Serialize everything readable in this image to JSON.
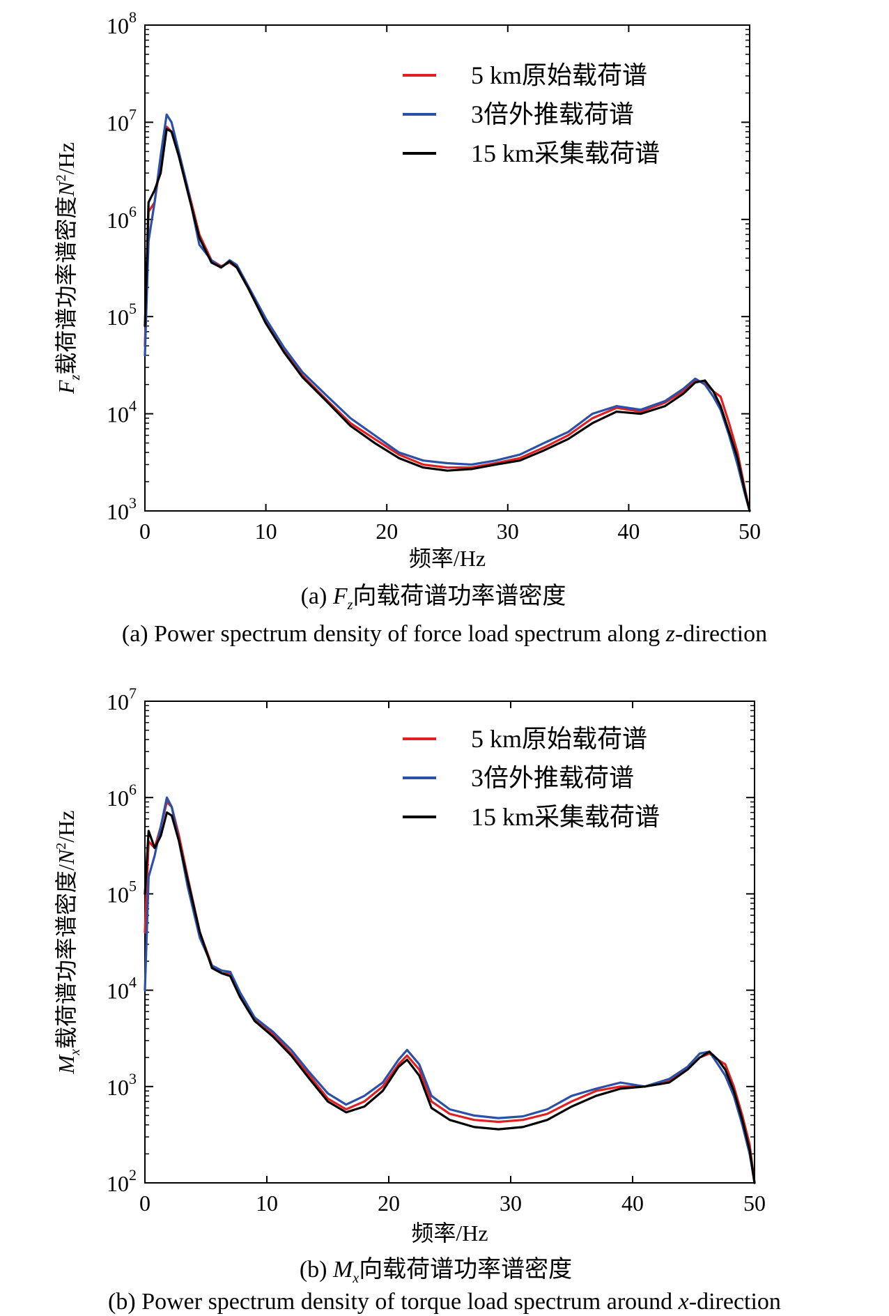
{
  "chart_data": [
    {
      "id": "a",
      "type": "line",
      "xlabel": "频率/Hz",
      "ylabel_main": "F",
      "ylabel_sub": "z",
      "ylabel_rest": "载荷谱功率谱密度",
      "ylabel_unit_n": "N",
      "ylabel_unit_exp": "2",
      "ylabel_unit_tail": "/Hz",
      "xlim": [
        0,
        50
      ],
      "ylim_exp": [
        3,
        8
      ],
      "yscale": "log",
      "xticks": [
        "0",
        "10",
        "20",
        "30",
        "40",
        "50"
      ],
      "yticks": [
        {
          "base": "10",
          "exp": "3"
        },
        {
          "base": "10",
          "exp": "4"
        },
        {
          "base": "10",
          "exp": "5"
        },
        {
          "base": "10",
          "exp": "6"
        },
        {
          "base": "10",
          "exp": "7"
        },
        {
          "base": "10",
          "exp": "8"
        }
      ],
      "legend_position": "top-right",
      "caption_cn_prefix": "(a) ",
      "caption_cn_var": "F",
      "caption_cn_sub": "z",
      "caption_cn_rest": "向载荷谱功率谱密度",
      "caption_en_a": "(a) Power spectrum density of  force load spectrum along ",
      "caption_en_var": "z",
      "caption_en_b": "-direction",
      "series": [
        {
          "name": "5 km原始载荷谱",
          "color": "#e02020",
          "x": [
            0,
            0.3,
            0.8,
            1.3,
            1.8,
            2.2,
            2.8,
            3.5,
            4.5,
            5.5,
            6.3,
            7.0,
            7.6,
            8.5,
            10,
            11.5,
            13,
            15,
            17,
            19,
            21,
            23,
            25,
            27,
            29,
            31,
            33,
            35,
            37,
            39,
            41,
            43,
            44.5,
            45.5,
            46.3,
            47,
            47.6,
            48.3,
            49,
            49.6,
            50
          ],
          "y": [
            50000,
            1200000,
            1500000,
            4000000,
            9000000,
            8000000,
            4500000,
            2200000,
            700000,
            380000,
            330000,
            360000,
            320000,
            200000,
            90000,
            45000,
            25000,
            14000,
            8000,
            5500,
            3800,
            3000,
            2800,
            2800,
            3100,
            3500,
            4500,
            6000,
            9000,
            11500,
            10500,
            13000,
            17000,
            22000,
            21000,
            17000,
            15000,
            8000,
            4000,
            1700,
            1000
          ]
        },
        {
          "name": "3倍外推载荷谱",
          "color": "#2a50a8",
          "x": [
            0,
            0.3,
            0.8,
            1.3,
            1.8,
            2.2,
            2.8,
            3.5,
            4.5,
            5.5,
            6.3,
            7.0,
            7.6,
            8.5,
            10,
            11.5,
            13,
            15,
            17,
            19,
            21,
            23,
            25,
            27,
            29,
            31,
            33,
            35,
            37,
            39,
            41,
            43,
            44.5,
            45.5,
            46.3,
            47,
            47.6,
            48.3,
            49,
            49.6,
            50
          ],
          "y": [
            40000,
            600000,
            1500000,
            4500000,
            12000000,
            10000000,
            5000000,
            2200000,
            550000,
            380000,
            320000,
            380000,
            340000,
            210000,
            95000,
            48000,
            27000,
            15500,
            9000,
            6000,
            4000,
            3300,
            3100,
            3000,
            3300,
            3800,
            5000,
            6500,
            10000,
            12000,
            11000,
            13500,
            18000,
            23000,
            20000,
            15000,
            11000,
            6000,
            3000,
            1500,
            1000
          ]
        },
        {
          "name": "15 km采集载荷谱",
          "color": "#000000",
          "x": [
            0,
            0.3,
            0.8,
            1.3,
            1.8,
            2.2,
            2.8,
            3.5,
            4.5,
            5.5,
            6.3,
            7.0,
            7.6,
            8.5,
            10,
            11.5,
            13,
            15,
            17,
            19,
            21,
            23,
            25,
            27,
            29,
            31,
            33,
            35,
            37,
            39,
            41,
            43,
            44.5,
            45.5,
            46.3,
            47,
            47.6,
            48.3,
            49,
            49.6,
            50
          ],
          "y": [
            80000,
            1500000,
            2000000,
            3000000,
            8500000,
            8000000,
            4500000,
            2000000,
            650000,
            360000,
            320000,
            370000,
            320000,
            200000,
            85000,
            43000,
            24000,
            13500,
            7500,
            5000,
            3500,
            2800,
            2600,
            2700,
            3000,
            3300,
            4200,
            5500,
            8000,
            10500,
            10000,
            12000,
            16000,
            21000,
            22000,
            17000,
            12000,
            6500,
            3500,
            1600,
            1000
          ]
        }
      ]
    },
    {
      "id": "b",
      "type": "line",
      "xlabel": "频率/Hz",
      "ylabel_main": "M",
      "ylabel_sub": "x",
      "ylabel_rest": "载荷谱功率谱密度/",
      "ylabel_unit_n": "N",
      "ylabel_unit_exp": "2",
      "ylabel_unit_tail": "/Hz",
      "xlim": [
        0,
        50
      ],
      "ylim_exp": [
        2,
        7
      ],
      "yscale": "log",
      "xticks": [
        "0",
        "10",
        "20",
        "30",
        "40",
        "50"
      ],
      "yticks": [
        {
          "base": "10",
          "exp": "2"
        },
        {
          "base": "10",
          "exp": "3"
        },
        {
          "base": "10",
          "exp": "4"
        },
        {
          "base": "10",
          "exp": "5"
        },
        {
          "base": "10",
          "exp": "6"
        },
        {
          "base": "10",
          "exp": "7"
        }
      ],
      "legend_position": "top-right",
      "caption_cn_prefix": "(b) ",
      "caption_cn_var": "M",
      "caption_cn_sub": "x",
      "caption_cn_rest": "向载荷谱功率谱密度",
      "caption_en_a": "(b) Power spectrum density of torque load spectrum around ",
      "caption_en_var": "x",
      "caption_en_b": "-direction",
      "series": [
        {
          "name": "5 km原始载荷谱",
          "color": "#e02020",
          "x": [
            0,
            0.3,
            0.8,
            1.3,
            1.8,
            2.2,
            2.8,
            3.5,
            4.5,
            5.5,
            6.3,
            7.0,
            7.8,
            9,
            10.5,
            12,
            13.5,
            15,
            16.5,
            18,
            19.5,
            20.8,
            21.5,
            22.5,
            23.5,
            25,
            27,
            29,
            31,
            33,
            35,
            37,
            39,
            41,
            43,
            44.5,
            45.5,
            46.3,
            47,
            47.6,
            48.3,
            49,
            49.6,
            50
          ],
          "y": [
            40000,
            350000,
            300000,
            500000,
            900000,
            800000,
            400000,
            150000,
            40000,
            18000,
            15000,
            15000,
            9000,
            5000,
            3500,
            2200,
            1300,
            750,
            580,
            700,
            1000,
            1700,
            2100,
            1500,
            700,
            520,
            450,
            430,
            450,
            520,
            700,
            900,
            1000,
            1000,
            1150,
            1500,
            2000,
            2200,
            1900,
            1700,
            1000,
            500,
            250,
            100
          ]
        },
        {
          "name": "3倍外推载荷谱",
          "color": "#2a50a8",
          "x": [
            0,
            0.3,
            0.8,
            1.3,
            1.8,
            2.2,
            2.8,
            3.5,
            4.5,
            5.5,
            6.3,
            7.0,
            7.8,
            9,
            10.5,
            12,
            13.5,
            15,
            16.5,
            18,
            19.5,
            20.8,
            21.5,
            22.5,
            23.5,
            25,
            27,
            29,
            31,
            33,
            35,
            37,
            39,
            41,
            43,
            44.5,
            45.5,
            46.3,
            47,
            47.6,
            48.3,
            49,
            49.6,
            50
          ],
          "y": [
            10000,
            150000,
            250000,
            500000,
            1000000,
            800000,
            350000,
            120000,
            35000,
            18000,
            16000,
            15500,
            9500,
            5200,
            3700,
            2400,
            1400,
            850,
            650,
            800,
            1100,
            1900,
            2400,
            1700,
            800,
            580,
            500,
            470,
            490,
            580,
            800,
            950,
            1100,
            1000,
            1200,
            1600,
            2200,
            2300,
            1700,
            1300,
            800,
            400,
            200,
            100
          ]
        },
        {
          "name": "15 km采集载荷谱",
          "color": "#000000",
          "x": [
            0,
            0.3,
            0.8,
            1.3,
            1.8,
            2.2,
            2.8,
            3.5,
            4.5,
            5.5,
            6.3,
            7.0,
            7.8,
            9,
            10.5,
            12,
            13.5,
            15,
            16.5,
            18,
            19.5,
            20.8,
            21.5,
            22.5,
            23.5,
            25,
            27,
            29,
            31,
            33,
            35,
            37,
            39,
            41,
            43,
            44.5,
            45.5,
            46.3,
            47,
            47.6,
            48.3,
            49,
            49.6,
            50
          ],
          "y": [
            100000,
            450000,
            300000,
            400000,
            700000,
            650000,
            350000,
            140000,
            40000,
            17000,
            15000,
            14000,
            8500,
            4800,
            3300,
            2100,
            1200,
            700,
            540,
            620,
            900,
            1600,
            1900,
            1300,
            600,
            450,
            380,
            360,
            380,
            450,
            620,
            800,
            950,
            1000,
            1100,
            1500,
            2000,
            2300,
            1900,
            1500,
            900,
            450,
            220,
            100
          ]
        }
      ]
    }
  ]
}
